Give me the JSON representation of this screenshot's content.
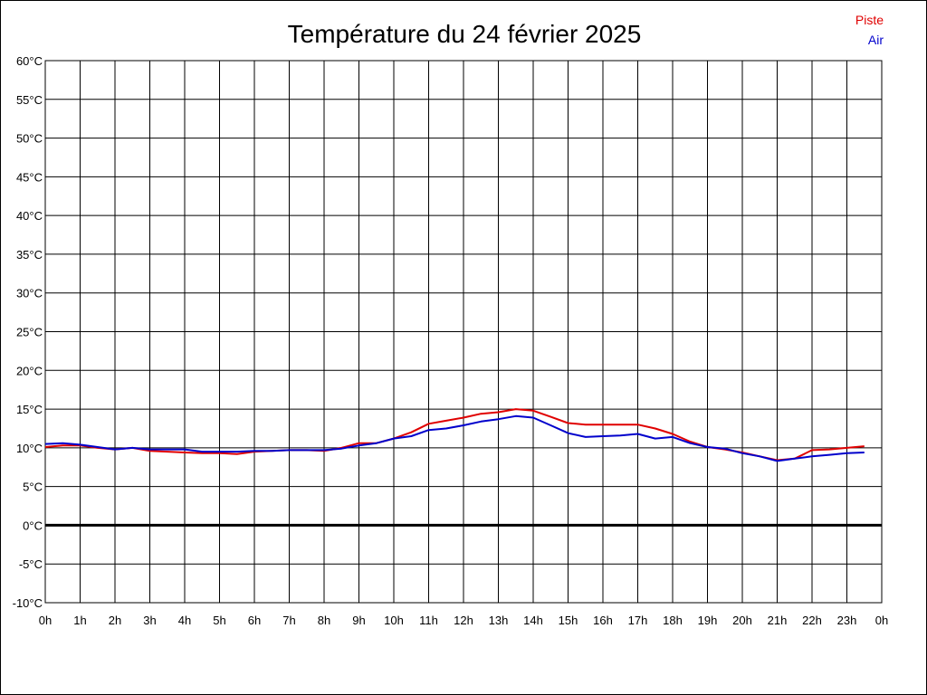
{
  "chart_data": {
    "type": "line",
    "title": "Température du 24 février 2025",
    "xlabel": "",
    "ylabel": "",
    "grid": true,
    "legend_position": "top-right",
    "ylim": [
      -10,
      60
    ],
    "xlim": [
      0,
      24
    ],
    "y_ticks": [
      60,
      55,
      50,
      45,
      40,
      35,
      30,
      25,
      20,
      15,
      10,
      5,
      0,
      -5,
      -10
    ],
    "y_tick_labels": [
      "60°C",
      "55°C",
      "50°C",
      "45°C",
      "40°C",
      "35°C",
      "30°C",
      "25°C",
      "20°C",
      "15°C",
      "10°C",
      "5°C",
      "0°C",
      "-5°C",
      "-10°C"
    ],
    "x_ticks": [
      0,
      1,
      2,
      3,
      4,
      5,
      6,
      7,
      8,
      9,
      10,
      11,
      12,
      13,
      14,
      15,
      16,
      17,
      18,
      19,
      20,
      21,
      22,
      23,
      24
    ],
    "x_tick_labels": [
      "0h",
      "1h",
      "2h",
      "3h",
      "4h",
      "5h",
      "6h",
      "7h",
      "8h",
      "9h",
      "10h",
      "11h",
      "12h",
      "13h",
      "14h",
      "15h",
      "16h",
      "17h",
      "18h",
      "19h",
      "20h",
      "21h",
      "22h",
      "23h",
      "0h"
    ],
    "zero_line": 0,
    "x": [
      0,
      0.5,
      1,
      1.5,
      2,
      2.5,
      3,
      3.5,
      4,
      4.5,
      5,
      5.5,
      6,
      6.5,
      7,
      7.5,
      8,
      8.5,
      9,
      9.5,
      10,
      10.5,
      11,
      11.5,
      12,
      12.5,
      13,
      13.5,
      14,
      14.5,
      15,
      15.5,
      16,
      16.5,
      17,
      17.5,
      18,
      18.5,
      19,
      19.5,
      20,
      20.5,
      21,
      21.5,
      22,
      22.5,
      23,
      23.5
    ],
    "series": [
      {
        "name": "Piste",
        "color": "#e00000",
        "values": [
          10.1,
          10.3,
          10.3,
          10.0,
          9.8,
          10.0,
          9.6,
          9.5,
          9.4,
          9.3,
          9.3,
          9.2,
          9.5,
          9.6,
          9.7,
          9.7,
          9.6,
          10.0,
          10.6,
          10.6,
          11.2,
          12.0,
          13.1,
          13.5,
          13.9,
          14.4,
          14.6,
          15.0,
          14.8,
          14.0,
          13.2,
          13.0,
          13.0,
          13.0,
          13.0,
          12.5,
          11.8,
          10.8,
          10.1,
          9.8,
          9.4,
          8.9,
          8.4,
          8.6,
          9.7,
          9.8,
          10.0,
          10.2
        ]
      },
      {
        "name": "Air",
        "color": "#0000cc",
        "values": [
          10.5,
          10.6,
          10.4,
          10.1,
          9.8,
          10.0,
          9.8,
          9.8,
          9.8,
          9.5,
          9.5,
          9.5,
          9.6,
          9.6,
          9.7,
          9.7,
          9.7,
          9.9,
          10.3,
          10.6,
          11.2,
          11.5,
          12.3,
          12.5,
          12.9,
          13.4,
          13.7,
          14.1,
          13.9,
          12.9,
          11.9,
          11.4,
          11.5,
          11.6,
          11.8,
          11.2,
          11.4,
          10.6,
          10.1,
          9.9,
          9.3,
          8.9,
          8.3,
          8.6,
          8.9,
          9.1,
          9.3,
          9.4
        ]
      }
    ]
  }
}
